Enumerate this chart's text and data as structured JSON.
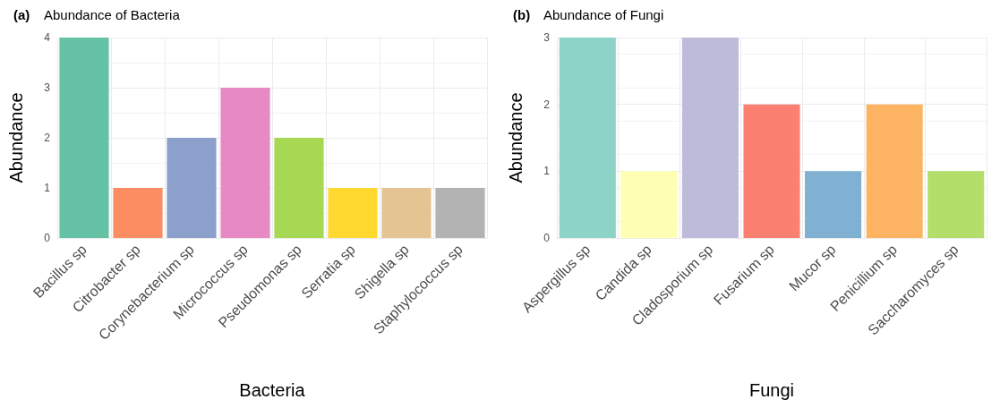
{
  "chart_data": [
    {
      "type": "bar",
      "title": "Abundance of Bacteria",
      "annotations": [
        "(a)"
      ],
      "xlabel": "Bacteria",
      "ylabel": "Abundance",
      "categories": [
        "Bacillus sp",
        "Citrobacter sp",
        "Corynebacterium sp",
        "Micrococcus sp",
        "Pseudomonas sp",
        "Serratia sp",
        "Shigella sp",
        "Staphylococcus sp"
      ],
      "values": [
        4,
        1,
        2,
        3,
        2,
        1,
        1,
        1
      ],
      "colors": [
        "#66c2a5",
        "#fc8d62",
        "#8da0cb",
        "#e78ac3",
        "#a6d854",
        "#ffd92f",
        "#e5c494",
        "#b3b3b3"
      ],
      "ylim": [
        0,
        4
      ],
      "yticks": [
        0,
        1,
        2,
        3,
        4
      ],
      "grid": true
    },
    {
      "type": "bar",
      "title": "Abundance of Fungi",
      "annotations": [
        "(b)"
      ],
      "xlabel": "Fungi",
      "ylabel": "Abundance",
      "categories": [
        "Aspergillus sp",
        "Candida sp",
        "Cladosporium sp",
        "Fusarium sp",
        "Mucor sp",
        "Penicillium sp",
        "Saccharomyces sp"
      ],
      "values": [
        3,
        1,
        3,
        2,
        1,
        2,
        1
      ],
      "colors": [
        "#8dd3c7",
        "#ffffb3",
        "#bebada",
        "#fb8072",
        "#80b1d3",
        "#fdb462",
        "#b3de69"
      ],
      "ylim": [
        0,
        3
      ],
      "yticks": [
        0,
        1,
        2,
        3
      ],
      "grid": true
    }
  ]
}
